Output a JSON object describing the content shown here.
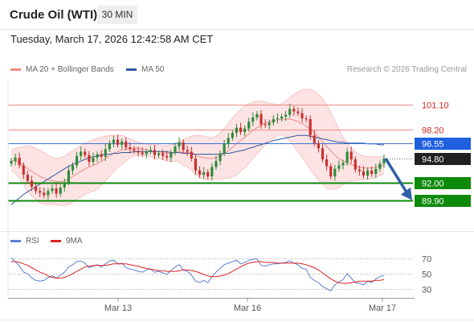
{
  "header": {
    "title": "Crude Oil (WTI)",
    "timeframe": "30 MIN"
  },
  "datetime": "Tuesday, March 17, 2026 12:42:58 AM CET",
  "legend": {
    "ma20": "MA 20 + Bollinger Bands",
    "ma20_color": "#f08a8a",
    "ma50": "MA 50",
    "ma50_color": "#2c5a9e",
    "credit": "Research © 2026 Trading Central"
  },
  "rsi_legend": {
    "rsi": "RSI",
    "rsi_color": "#5b7fd6",
    "ma": "9MA",
    "ma_color": "#dd2222"
  },
  "chart_data": [
    {
      "type": "candlestick",
      "title": "Crude Oil (WTI)",
      "ylim": [
        86.6,
        104.3
      ],
      "x_ticks": [
        "Mar 13",
        "Mar 16",
        "Mar 17"
      ],
      "levels": [
        {
          "value": 101.1,
          "label": "101.10",
          "kind": "resistance"
        },
        {
          "value": 98.2,
          "label": "98.20",
          "kind": "resistance"
        },
        {
          "value": 96.55,
          "label": "96.55",
          "kind": "pivot"
        },
        {
          "value": 94.8,
          "label": "94.80",
          "kind": "last"
        },
        {
          "value": 92.0,
          "label": "92.00",
          "kind": "support"
        },
        {
          "value": 89.9,
          "label": "89.90",
          "kind": "support"
        }
      ],
      "closes": [
        94.5,
        94.9,
        94.0,
        92.9,
        92.2,
        91.5,
        91.0,
        90.8,
        90.5,
        91.0,
        91.3,
        90.7,
        91.4,
        92.0,
        93.4,
        94.0,
        95.1,
        95.6,
        95.2,
        94.4,
        94.9,
        95.3,
        95.0,
        95.9,
        96.6,
        97.0,
        96.4,
        96.8,
        96.1,
        95.9,
        95.7,
        95.5,
        95.3,
        95.6,
        95.8,
        95.2,
        95.4,
        95.1,
        94.9,
        95.5,
        96.2,
        96.7,
        95.8,
        95.6,
        94.8,
        93.4,
        92.9,
        93.2,
        92.7,
        93.8,
        94.5,
        95.4,
        96.5,
        97.2,
        97.8,
        98.4,
        97.9,
        98.3,
        99.1,
        99.6,
        100.0,
        98.8,
        98.7,
        99.0,
        99.4,
        99.5,
        99.7,
        99.9,
        100.6,
        100.3,
        100.1,
        99.5,
        99.4,
        97.5,
        96.6,
        96.0,
        94.7,
        93.9,
        92.7,
        93.6,
        94.0,
        94.3,
        95.6,
        94.7,
        93.5,
        93.3,
        92.8,
        93.4,
        93.0,
        93.6,
        94.2,
        94.8
      ],
      "ma20": [
        94.6,
        94.5,
        94.3,
        94.0,
        93.6,
        93.3,
        93.0,
        92.7,
        92.5,
        92.3,
        92.2,
        92.1,
        92.1,
        92.2,
        92.4,
        92.7,
        93.0,
        93.3,
        93.6,
        93.8,
        94.0,
        94.2,
        94.5,
        94.8,
        95.1,
        95.4,
        95.6,
        95.8,
        95.9,
        96.0,
        96.0,
        96.0,
        95.9,
        95.8,
        95.7,
        95.6,
        95.6,
        95.5,
        95.4,
        95.4,
        95.5,
        95.6,
        95.5,
        95.5,
        95.4,
        95.2,
        95.0,
        94.9,
        94.8,
        94.8,
        94.9,
        95.1,
        95.4,
        95.7,
        96.1,
        96.5,
        96.9,
        97.3,
        97.7,
        98.1,
        98.4,
        98.7,
        98.9,
        99.1,
        99.2,
        99.3,
        99.4,
        99.4,
        99.4,
        99.3,
        99.1,
        98.9,
        98.6,
        98.2,
        97.8,
        97.3,
        96.8,
        96.2,
        95.7,
        95.2,
        94.8,
        94.5,
        94.3,
        94.1,
        93.9,
        93.8,
        93.7,
        93.7,
        93.7,
        93.8,
        93.9,
        94.0
      ],
      "bb_upper": [
        95.8,
        96.0,
        96.1,
        96.2,
        96.3,
        96.2,
        96.0,
        95.8,
        95.5,
        95.2,
        94.9,
        94.8,
        94.9,
        95.1,
        95.4,
        95.7,
        96.0,
        96.3,
        96.6,
        96.8,
        97.0,
        97.2,
        97.3,
        97.4,
        97.5,
        97.5,
        97.5,
        97.5,
        97.3,
        97.1,
        96.9,
        96.7,
        96.6,
        96.5,
        96.4,
        96.4,
        96.4,
        96.3,
        96.3,
        96.4,
        96.5,
        96.8,
        97.0,
        97.2,
        97.4,
        97.5,
        97.5,
        97.4,
        97.3,
        97.2,
        97.4,
        97.8,
        98.3,
        98.9,
        99.5,
        100.1,
        100.5,
        100.9,
        101.2,
        101.4,
        101.5,
        101.5,
        101.4,
        101.3,
        101.2,
        101.1,
        101.2,
        101.5,
        101.9,
        102.3,
        102.6,
        102.8,
        102.9,
        102.9,
        102.7,
        102.3,
        101.8,
        101.1,
        100.2,
        99.2,
        98.2,
        97.3,
        96.6,
        96.0,
        95.6,
        95.3,
        95.1,
        95.0,
        95.0,
        95.0,
        95.0,
        95.0
      ],
      "bb_lower": [
        93.4,
        93.0,
        92.5,
        91.8,
        90.9,
        90.4,
        90.0,
        89.6,
        89.5,
        89.4,
        89.5,
        89.4,
        89.3,
        89.3,
        89.4,
        89.7,
        90.0,
        90.3,
        90.6,
        90.8,
        91.0,
        91.2,
        91.7,
        92.2,
        92.7,
        93.3,
        93.7,
        94.1,
        94.5,
        94.9,
        95.1,
        95.3,
        95.2,
        95.1,
        95.0,
        94.8,
        94.8,
        94.7,
        94.5,
        94.4,
        94.5,
        94.4,
        94.0,
        93.8,
        93.4,
        92.9,
        92.5,
        92.4,
        92.3,
        92.4,
        92.4,
        92.4,
        92.5,
        92.5,
        92.7,
        92.9,
        93.3,
        93.7,
        94.2,
        94.8,
        95.3,
        95.9,
        96.4,
        96.9,
        97.2,
        97.5,
        97.6,
        97.3,
        96.9,
        96.3,
        95.6,
        95.0,
        94.3,
        93.5,
        92.9,
        92.3,
        91.8,
        91.3,
        91.2,
        91.2,
        91.4,
        91.7,
        92.0,
        92.2,
        92.2,
        92.3,
        92.3,
        92.4,
        92.4,
        92.6,
        92.8,
        93.0
      ],
      "ma50": [
        89.4,
        89.8,
        90.2,
        90.6,
        90.9,
        91.2,
        91.5,
        91.8,
        92.1,
        92.4,
        92.7,
        93.0,
        93.3,
        93.6,
        93.9,
        94.1,
        94.3,
        94.5,
        94.7,
        94.9,
        95.0,
        95.1,
        95.2,
        95.3,
        95.3,
        95.4,
        95.4,
        95.5,
        95.5,
        95.5,
        95.6,
        95.6,
        95.6,
        95.6,
        95.6,
        95.6,
        95.6,
        95.6,
        95.6,
        95.5,
        95.5,
        95.5,
        95.4,
        95.4,
        95.4,
        95.3,
        95.3,
        95.3,
        95.3,
        95.3,
        95.3,
        95.3,
        95.4,
        95.4,
        95.5,
        95.6,
        95.7,
        95.8,
        96.0,
        96.1,
        96.3,
        96.4,
        96.6,
        96.7,
        96.9,
        97.0,
        97.1,
        97.2,
        97.3,
        97.4,
        97.5,
        97.5,
        97.5,
        97.4,
        97.3,
        97.2,
        97.1,
        97.0,
        96.9,
        96.8,
        96.7,
        96.7,
        96.6,
        96.6,
        96.6,
        96.6,
        96.6,
        96.5,
        96.5,
        96.5,
        96.4,
        96.4
      ]
    },
    {
      "type": "line",
      "title": "RSI",
      "ylim": [
        22,
        80
      ],
      "y_ticks": [
        70,
        50,
        30
      ],
      "series": [
        {
          "name": "RSI",
          "values": [
            71,
            66,
            60,
            52,
            50,
            44,
            41,
            40,
            41,
            45,
            47,
            44,
            48,
            52,
            59,
            62,
            66,
            67,
            64,
            58,
            60,
            62,
            59,
            63,
            67,
            68,
            63,
            64,
            58,
            56,
            55,
            53,
            52,
            55,
            56,
            52,
            53,
            51,
            49,
            54,
            59,
            62,
            55,
            53,
            48,
            40,
            38,
            41,
            38,
            46,
            52,
            57,
            62,
            64,
            66,
            68,
            63,
            65,
            68,
            69,
            70,
            61,
            60,
            62,
            63,
            63,
            64,
            65,
            67,
            64,
            62,
            57,
            56,
            45,
            41,
            38,
            33,
            30,
            27,
            35,
            39,
            42,
            50,
            44,
            38,
            37,
            35,
            40,
            38,
            43,
            46,
            48
          ]
        },
        {
          "name": "9MA",
          "values": [
            66,
            66,
            65,
            63,
            61,
            58,
            55,
            52,
            50,
            47,
            45,
            44,
            44,
            45,
            47,
            50,
            53,
            56,
            59,
            60,
            61,
            61,
            61,
            61,
            62,
            63,
            63,
            63,
            63,
            62,
            61,
            60,
            58,
            57,
            56,
            55,
            54,
            54,
            53,
            53,
            53,
            54,
            55,
            55,
            54,
            53,
            51,
            49,
            47,
            46,
            46,
            47,
            48,
            50,
            53,
            56,
            59,
            62,
            64,
            65,
            66,
            66,
            65,
            65,
            65,
            64,
            64,
            64,
            64,
            64,
            64,
            63,
            62,
            60,
            58,
            55,
            51,
            47,
            43,
            40,
            38,
            37,
            37,
            38,
            39,
            40,
            40,
            40,
            40,
            41,
            41,
            42
          ]
        }
      ]
    }
  ]
}
